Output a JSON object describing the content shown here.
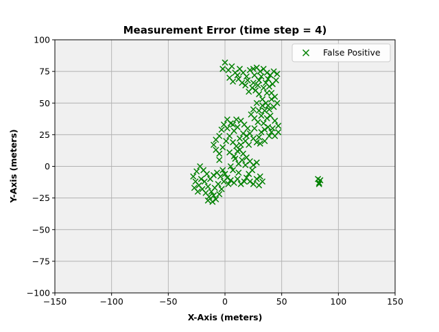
{
  "chart_data": {
    "type": "scatter",
    "title": "Measurement Error (time step = 4)",
    "xlabel": "X-Axis (meters)",
    "ylabel": "Y-Axis (meters)",
    "xlim": [
      -150,
      150
    ],
    "ylim": [
      -100,
      100
    ],
    "xticks": [
      -150,
      -100,
      -50,
      0,
      50,
      100,
      150
    ],
    "yticks": [
      -100,
      -75,
      -50,
      -25,
      0,
      25,
      50,
      75,
      100
    ],
    "xtick_labels": [
      "−150",
      "−100",
      "−50",
      "0",
      "50",
      "100",
      "150"
    ],
    "ytick_labels": [
      "−100",
      "−75",
      "−50",
      "−25",
      "0",
      "25",
      "50",
      "75",
      "100"
    ],
    "grid": true,
    "legend_position": "top-right",
    "background": "#f0f0f0",
    "series": [
      {
        "name": "False Positive",
        "marker": "x",
        "color": "#008000",
        "points": [
          [
            -2,
            77
          ],
          [
            0,
            82
          ],
          [
            3,
            76
          ],
          [
            6,
            79
          ],
          [
            9,
            74
          ],
          [
            4,
            70
          ],
          [
            7,
            67
          ],
          [
            11,
            72
          ],
          [
            13,
            77
          ],
          [
            16,
            74
          ],
          [
            19,
            71
          ],
          [
            22,
            76
          ],
          [
            25,
            77
          ],
          [
            28,
            78
          ],
          [
            31,
            75
          ],
          [
            34,
            77
          ],
          [
            37,
            74
          ],
          [
            40,
            72
          ],
          [
            43,
            75
          ],
          [
            46,
            73
          ],
          [
            45,
            68
          ],
          [
            42,
            65
          ],
          [
            39,
            63
          ],
          [
            41,
            58
          ],
          [
            44,
            55
          ],
          [
            46,
            50
          ],
          [
            43,
            47
          ],
          [
            39,
            45
          ],
          [
            36,
            50
          ],
          [
            33,
            53
          ],
          [
            30,
            57
          ],
          [
            27,
            60
          ],
          [
            24,
            62
          ],
          [
            21,
            59
          ],
          [
            18,
            64
          ],
          [
            15,
            66
          ],
          [
            12,
            69
          ],
          [
            20,
            68
          ],
          [
            25,
            66
          ],
          [
            30,
            68
          ],
          [
            34,
            62
          ],
          [
            37,
            58
          ],
          [
            28,
            50
          ],
          [
            25,
            45
          ],
          [
            23,
            41
          ],
          [
            26,
            38
          ],
          [
            29,
            35
          ],
          [
            32,
            40
          ],
          [
            35,
            44
          ],
          [
            40,
            40
          ],
          [
            44,
            36
          ],
          [
            47,
            32
          ],
          [
            47,
            27
          ],
          [
            44,
            24
          ],
          [
            41,
            27
          ],
          [
            38,
            31
          ],
          [
            35,
            29
          ],
          [
            32,
            27
          ],
          [
            30,
            23
          ],
          [
            28,
            19
          ],
          [
            25,
            22
          ],
          [
            22,
            26
          ],
          [
            20,
            30
          ],
          [
            17,
            33
          ],
          [
            14,
            36
          ],
          [
            11,
            31
          ],
          [
            8,
            28
          ],
          [
            5,
            34
          ],
          [
            2,
            37
          ],
          [
            -1,
            33
          ],
          [
            -3,
            29
          ],
          [
            -5,
            24
          ],
          [
            -8,
            21
          ],
          [
            -10,
            17
          ],
          [
            -8,
            13
          ],
          [
            -5,
            10
          ],
          [
            -2,
            15
          ],
          [
            1,
            20
          ],
          [
            4,
            24
          ],
          [
            7,
            19
          ],
          [
            10,
            16
          ],
          [
            13,
            13
          ],
          [
            16,
            10
          ],
          [
            19,
            7
          ],
          [
            22,
            4
          ],
          [
            25,
            1
          ],
          [
            28,
            3
          ],
          [
            24,
            -3
          ],
          [
            21,
            -6
          ],
          [
            19,
            -9
          ],
          [
            22,
            -12
          ],
          [
            25,
            -14
          ],
          [
            28,
            -10
          ],
          [
            31,
            -8
          ],
          [
            33,
            -12
          ],
          [
            30,
            -15
          ],
          [
            17,
            -12
          ],
          [
            14,
            -14
          ],
          [
            11,
            -10
          ],
          [
            8,
            -13
          ],
          [
            5,
            -11
          ],
          [
            2,
            -9
          ],
          [
            -1,
            -12
          ],
          [
            -4,
            -8
          ],
          [
            -7,
            -5
          ],
          [
            -10,
            -7
          ],
          [
            -13,
            -10
          ],
          [
            -16,
            -6
          ],
          [
            -19,
            -3
          ],
          [
            -22,
            0
          ],
          [
            -25,
            -4
          ],
          [
            -28,
            -8
          ],
          [
            -26,
            -12
          ],
          [
            -23,
            -15
          ],
          [
            -20,
            -18
          ],
          [
            -17,
            -21
          ],
          [
            -14,
            -24
          ],
          [
            -11,
            -28
          ],
          [
            -8,
            -26
          ],
          [
            -5,
            -22
          ],
          [
            -3,
            -18
          ],
          [
            -6,
            -14
          ],
          [
            -9,
            -17
          ],
          [
            -12,
            -20
          ],
          [
            -15,
            -16
          ],
          [
            -18,
            -12
          ],
          [
            -21,
            -10
          ],
          [
            -24,
            -20
          ],
          [
            -27,
            -17
          ],
          [
            -15,
            -27
          ],
          [
            -10,
            -23
          ],
          [
            0,
            -6
          ],
          [
            3,
            -14
          ],
          [
            9,
            6
          ],
          [
            12,
            2
          ],
          [
            15,
            5
          ],
          [
            18,
            1
          ],
          [
            13,
            22
          ],
          [
            16,
            26
          ],
          [
            19,
            24
          ],
          [
            10,
            37
          ],
          [
            7,
            33
          ],
          [
            2,
            30
          ],
          [
            4,
            11
          ],
          [
            -5,
            5
          ],
          [
            38,
            69
          ],
          [
            36,
            66
          ],
          [
            32,
            71
          ],
          [
            26,
            72
          ],
          [
            29,
            64
          ],
          [
            33,
            48
          ],
          [
            38,
            48
          ],
          [
            41,
            53
          ],
          [
            30,
            44
          ],
          [
            26,
            30
          ],
          [
            34,
            34
          ],
          [
            37,
            38
          ],
          [
            42,
            30
          ],
          [
            39,
            24
          ],
          [
            35,
            20
          ],
          [
            31,
            18
          ],
          [
            21,
            17
          ],
          [
            18,
            20
          ],
          [
            14,
            17
          ],
          [
            11,
            12
          ],
          [
            8,
            8
          ],
          [
            5,
            0
          ],
          [
            -2,
            -3
          ],
          [
            7,
            -3
          ],
          [
            12,
            -5
          ],
          [
            82,
            -10
          ],
          [
            83,
            -13
          ],
          [
            84,
            -11
          ],
          [
            83,
            -14
          ]
        ]
      }
    ]
  }
}
